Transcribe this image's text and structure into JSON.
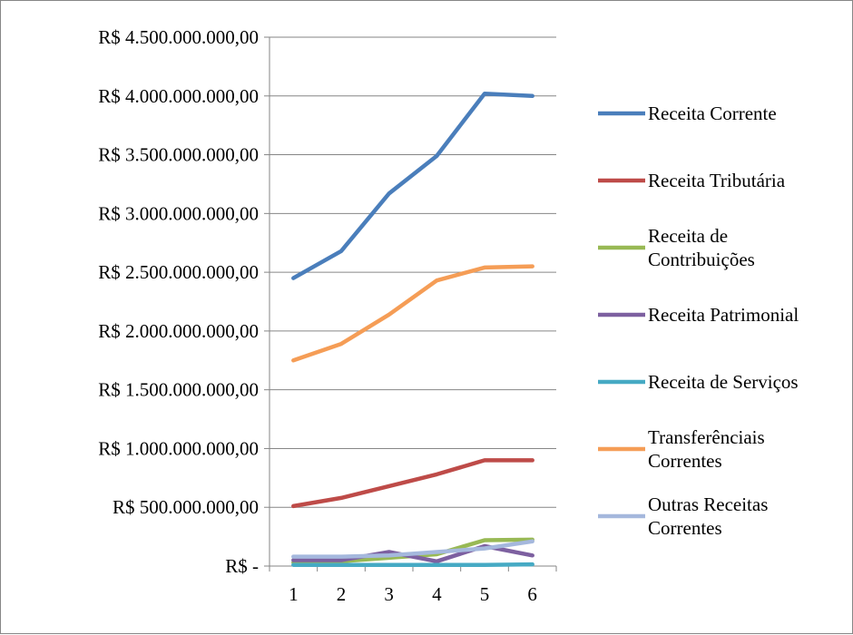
{
  "chart_data": {
    "type": "line",
    "title": "",
    "xlabel": "",
    "ylabel": "",
    "categories": [
      "1",
      "2",
      "3",
      "4",
      "5",
      "6"
    ],
    "ylim": [
      0,
      4500000000
    ],
    "y_ticks": [
      {
        "value": 0,
        "label": "R$ -"
      },
      {
        "value": 500000000,
        "label": "R$ 500.000.000,00"
      },
      {
        "value": 1000000000,
        "label": "R$ 1.000.000.000,00"
      },
      {
        "value": 1500000000,
        "label": "R$ 1.500.000.000,00"
      },
      {
        "value": 2000000000,
        "label": "R$ 2.000.000.000,00"
      },
      {
        "value": 2500000000,
        "label": "R$ 2.500.000.000,00"
      },
      {
        "value": 3000000000,
        "label": "R$ 3.000.000.000,00"
      },
      {
        "value": 3500000000,
        "label": "R$ 3.500.000.000,00"
      },
      {
        "value": 4000000000,
        "label": "R$ 4.000.000.000,00"
      },
      {
        "value": 4500000000,
        "label": "R$ 4.500.000.000,00"
      }
    ],
    "grid": "horizontal",
    "legend_position": "right",
    "series": [
      {
        "name": "Receita Corrente",
        "legend_lines": [
          "Receita Corrente"
        ],
        "color": "#4a7ebb",
        "values": [
          2450000000,
          2680000000,
          3170000000,
          3490000000,
          4020000000,
          4000000000
        ]
      },
      {
        "name": "Receita Tributária",
        "legend_lines": [
          "Receita Tributária"
        ],
        "color": "#be4b48",
        "values": [
          510000000,
          580000000,
          680000000,
          780000000,
          900000000,
          900000000
        ]
      },
      {
        "name": "Receita de Contribuições",
        "legend_lines": [
          "Receita de",
          "Contribuições"
        ],
        "color": "#98b954",
        "values": [
          30000000,
          40000000,
          70000000,
          100000000,
          220000000,
          225000000
        ]
      },
      {
        "name": "Receita Patrimonial",
        "legend_lines": [
          "Receita Patrimonial"
        ],
        "color": "#7d60a0",
        "values": [
          50000000,
          50000000,
          120000000,
          40000000,
          170000000,
          90000000
        ]
      },
      {
        "name": "Receita de Serviços",
        "legend_lines": [
          "Receita de Serviços"
        ],
        "color": "#46aac4",
        "values": [
          10000000,
          10000000,
          10000000,
          10000000,
          10000000,
          15000000
        ]
      },
      {
        "name": "Transferênciais Correntes",
        "legend_lines": [
          "Transferênciais",
          "Correntes"
        ],
        "color": "#f59d56",
        "values": [
          1750000000,
          1890000000,
          2140000000,
          2430000000,
          2540000000,
          2550000000
        ]
      },
      {
        "name": "Outras Receitas Correntes",
        "legend_lines": [
          "Outras Receitas",
          "Correntes"
        ],
        "color": "#a5b8dd",
        "values": [
          80000000,
          80000000,
          90000000,
          120000000,
          150000000,
          210000000
        ]
      }
    ]
  }
}
